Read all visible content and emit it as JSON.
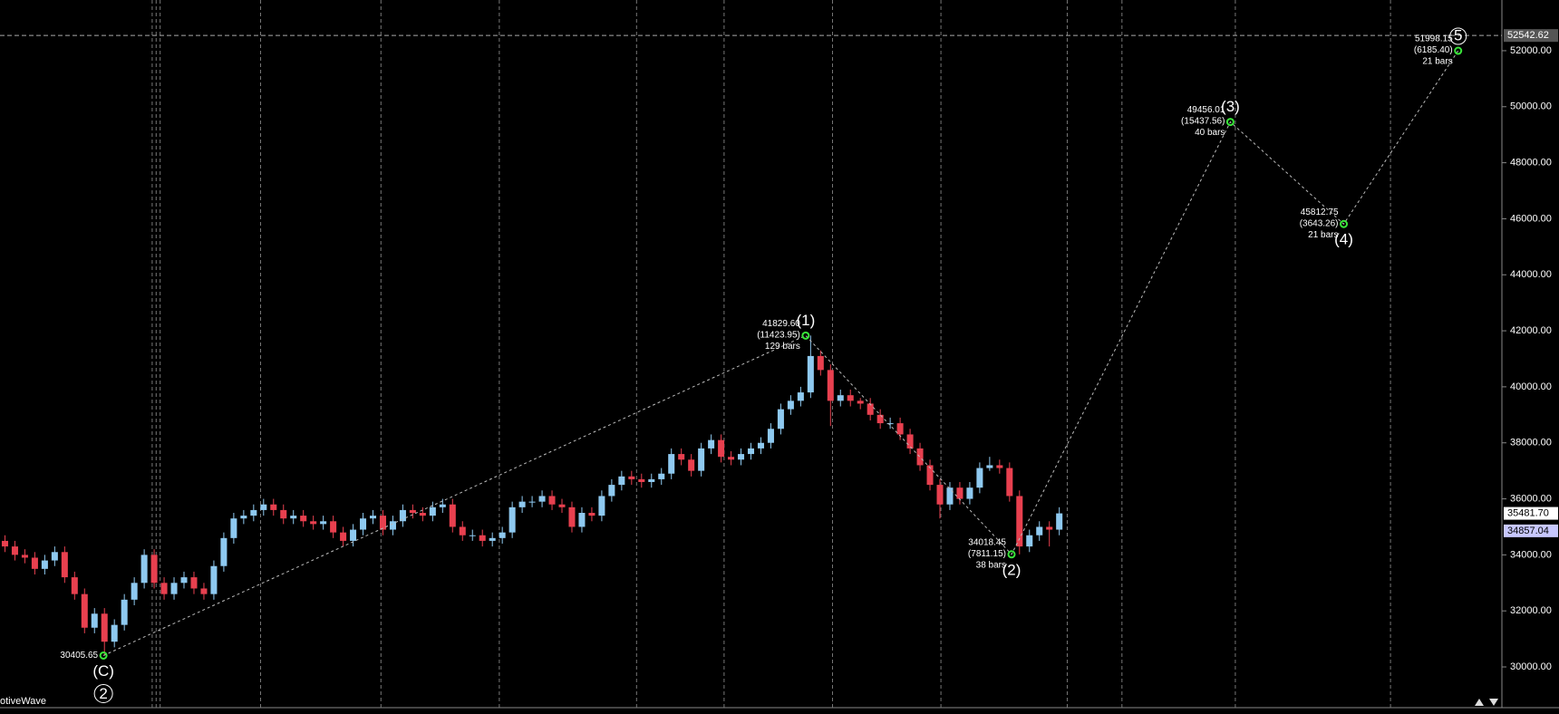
{
  "chart_data": {
    "type": "candlestick",
    "app_label": "otiveWave",
    "ylim": [
      28545,
      53810
    ],
    "xlim": [
      0,
      151
    ],
    "yticks": [
      {
        "value": 30000,
        "label": "30000.00"
      },
      {
        "value": 32000,
        "label": "32000.00"
      },
      {
        "value": 34000,
        "label": "34000.00"
      },
      {
        "value": 36000,
        "label": "36000.00"
      },
      {
        "value": 38000,
        "label": "38000.00"
      },
      {
        "value": 40000,
        "label": "40000.00"
      },
      {
        "value": 42000,
        "label": "42000.00"
      },
      {
        "value": 44000,
        "label": "44000.00"
      },
      {
        "value": 46000,
        "label": "46000.00"
      },
      {
        "value": 48000,
        "label": "48000.00"
      },
      {
        "value": 50000,
        "label": "50000.00"
      },
      {
        "value": 52000,
        "label": "52000.00"
      }
    ],
    "xgrid": [
      15.3,
      15.7,
      16.1,
      26.2,
      38.3,
      50.2,
      64,
      72.8,
      83.7,
      94.6,
      107.3,
      112.8,
      124.2,
      139.8
    ],
    "up_color": "#8ec9f0",
    "down_color": "#e8404f",
    "candles": {
      "open": [
        34500,
        34300,
        34000,
        33900,
        33500,
        33800,
        34100,
        33200,
        32600,
        31400,
        31900,
        30900,
        31500,
        32400,
        33000,
        34000,
        33000,
        32600,
        33000,
        33200,
        32800,
        32600,
        33600,
        34600,
        35300,
        35400,
        35600,
        35800,
        35600,
        35300,
        35400,
        35200,
        35100,
        35200,
        34800,
        34500,
        34900,
        35300,
        35400,
        34900,
        35200,
        35600,
        35500,
        35400,
        35700,
        35800,
        35000,
        34700,
        34700,
        34500,
        34600,
        34800,
        35700,
        35900,
        35900,
        36100,
        35800,
        35700,
        35000,
        35500,
        35400,
        36100,
        36500,
        36800,
        36700,
        36600,
        36700,
        36900,
        37600,
        37400,
        37000,
        37800,
        38100,
        37500,
        37400,
        37600,
        37800,
        38000,
        38500,
        39200,
        39500,
        39800,
        41100,
        40600,
        39500,
        39700,
        39500,
        39400,
        39000,
        38700,
        38700,
        38300,
        37800,
        37200,
        36500,
        35800,
        36400,
        36000,
        36400,
        37100,
        37200,
        37100,
        36100,
        34300,
        34700,
        35000,
        34900
      ],
      "high": [
        34700,
        34500,
        34200,
        34100,
        34000,
        34300,
        34300,
        33400,
        32800,
        32100,
        32100,
        31700,
        32600,
        33200,
        34200,
        34200,
        33200,
        33200,
        33400,
        33400,
        33000,
        33800,
        34800,
        35500,
        35600,
        35800,
        36000,
        36000,
        35800,
        35600,
        35600,
        35400,
        35400,
        35400,
        35000,
        35100,
        35500,
        35600,
        35600,
        35400,
        35800,
        35800,
        35700,
        35900,
        36000,
        36000,
        35200,
        34900,
        34900,
        34800,
        35000,
        35900,
        36100,
        36100,
        36300,
        36300,
        36000,
        35900,
        35700,
        35700,
        36300,
        36700,
        37000,
        37000,
        36900,
        36900,
        37100,
        37800,
        37800,
        37600,
        38000,
        38300,
        38300,
        37700,
        37800,
        38000,
        38200,
        38700,
        39400,
        39700,
        40000,
        41829.6,
        41300,
        40800,
        39900,
        39900,
        39600,
        39600,
        39200,
        38900,
        38900,
        38500,
        38000,
        37400,
        36700,
        36600,
        36600,
        36600,
        37300,
        37500,
        37400,
        37300,
        36300,
        34900,
        35200,
        35200,
        35700
      ],
      "low": [
        34100,
        33800,
        33700,
        33300,
        33300,
        33600,
        33000,
        32400,
        31200,
        31200,
        30405.65,
        30700,
        31300,
        32200,
        32800,
        32800,
        32400,
        32400,
        32800,
        32600,
        32400,
        32400,
        33400,
        34400,
        35100,
        35200,
        35400,
        35400,
        35100,
        35100,
        35000,
        34900,
        34900,
        34600,
        34300,
        34300,
        34700,
        35100,
        34700,
        34700,
        35000,
        35300,
        35200,
        35200,
        35500,
        34800,
        34500,
        34500,
        34300,
        34300,
        34400,
        34600,
        35500,
        35700,
        35700,
        35600,
        35500,
        34800,
        34800,
        35200,
        35200,
        35900,
        36300,
        36500,
        36400,
        36400,
        36500,
        36700,
        37200,
        36800,
        36800,
        37600,
        37300,
        37200,
        37200,
        37400,
        37600,
        37800,
        38300,
        39000,
        39300,
        39600,
        40400,
        38600,
        39300,
        39300,
        39200,
        38800,
        38500,
        38500,
        38100,
        37600,
        37000,
        36300,
        35300,
        35600,
        35800,
        35800,
        36200,
        37000,
        36900,
        35900,
        34018.45,
        34100,
        34500,
        34300,
        34700
      ],
      "close": [
        34300,
        34000,
        33900,
        33500,
        33800,
        34100,
        33200,
        32600,
        31400,
        31900,
        30900,
        31500,
        32400,
        33000,
        34000,
        33000,
        32600,
        33000,
        33200,
        32800,
        32600,
        33600,
        34600,
        35300,
        35400,
        35600,
        35800,
        35600,
        35300,
        35400,
        35200,
        35100,
        35200,
        34800,
        34500,
        34900,
        35300,
        35400,
        34900,
        35200,
        35600,
        35500,
        35400,
        35700,
        35800,
        35000,
        34700,
        34700,
        34500,
        34600,
        34800,
        35700,
        35900,
        35900,
        36100,
        35800,
        35700,
        35000,
        35500,
        35400,
        36100,
        36500,
        36800,
        36700,
        36600,
        36700,
        36900,
        37600,
        37400,
        37000,
        37800,
        38100,
        37500,
        37400,
        37600,
        37800,
        38000,
        38500,
        39200,
        39500,
        39800,
        41100,
        40600,
        39500,
        39700,
        39500,
        39400,
        39000,
        38700,
        38700,
        38300,
        37800,
        37200,
        36500,
        35800,
        36400,
        36000,
        36400,
        37100,
        37200,
        37100,
        36100,
        34300,
        34700,
        35000,
        34900,
        35481.7
      ]
    },
    "waves": {
      "x": [
        10.4,
        81,
        101.7,
        123.7,
        135.1,
        146.6
      ],
      "values": [
        30405.65,
        41829.6,
        34018.45,
        49456.01,
        45812.75,
        51998.15
      ],
      "value_labels": [
        "30405.65",
        "41829.60",
        "34018.45",
        "49456.01",
        "45812.75",
        "51998.15"
      ],
      "labels": [
        "(C)",
        "(1)",
        "(2)",
        "(3)",
        "(4)",
        "5"
      ],
      "changes": [
        null,
        "(11423.95)",
        "(7811.15)",
        "(15437.56)",
        "(3643.26)",
        "(6185.40)"
      ],
      "bars": [
        null,
        "129 bars",
        "38 bars",
        "40 bars",
        "21 bars",
        "21 bars"
      ],
      "degree_label": "2",
      "color": "#39e639"
    },
    "price_lines": [
      {
        "value": 52542.62,
        "label": "52542.62"
      },
      {
        "value": 35481.7,
        "label": "35481.70"
      },
      {
        "value": 34857.04,
        "label": "34857.04"
      }
    ]
  }
}
